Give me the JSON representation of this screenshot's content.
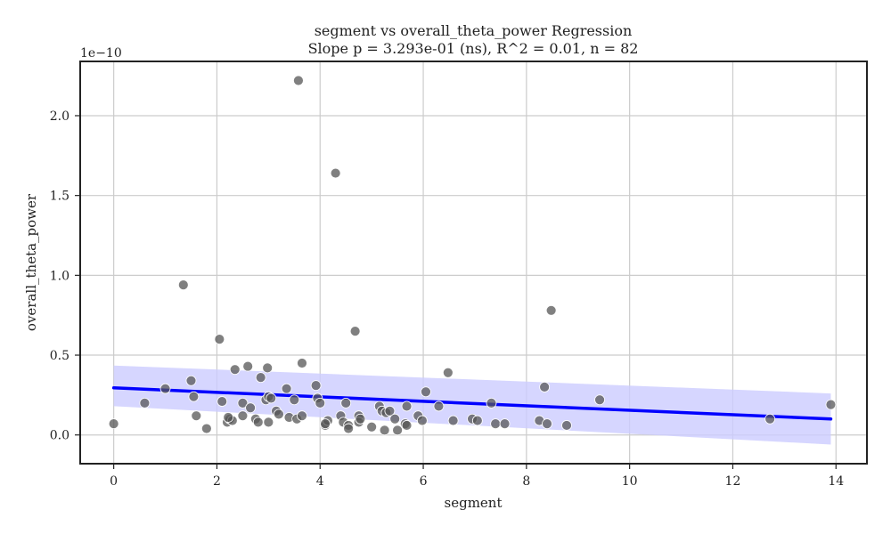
{
  "chart_data": {
    "type": "scatter",
    "title": "segment vs overall_theta_power Regression",
    "subtitle": "Slope p = 3.293e-01 (ns), R^2 = 0.01, n = 82",
    "xlabel": "segment",
    "ylabel": "overall_theta_power",
    "y_offset_label": "1e−10",
    "xlim": [
      -0.65,
      14.6
    ],
    "ylim": [
      -0.18,
      2.34
    ],
    "y_units": "1e-10",
    "xticks": [
      0,
      2,
      4,
      6,
      8,
      10,
      12,
      14
    ],
    "xtick_labels": [
      "0",
      "2",
      "4",
      "6",
      "8",
      "10",
      "12",
      "14"
    ],
    "yticks": [
      0.0,
      0.5,
      1.0,
      1.5,
      2.0
    ],
    "ytick_labels": [
      "0.0",
      "0.5",
      "1.0",
      "1.5",
      "2.0"
    ],
    "grid": true,
    "colors": {
      "points": "#555555",
      "line": "#0000ff",
      "band": "#ccccff",
      "grid": "#cccccc",
      "axes": "#222222"
    },
    "regression": {
      "x": [
        0,
        13.9
      ],
      "y": [
        0.295,
        0.1
      ],
      "ci_upper": [
        0.435,
        0.26
      ],
      "ci_lower": [
        0.18,
        -0.06
      ]
    },
    "points": [
      {
        "x": 0.0,
        "y": 0.07
      },
      {
        "x": 0.6,
        "y": 0.2
      },
      {
        "x": 1.0,
        "y": 0.29
      },
      {
        "x": 1.35,
        "y": 0.94
      },
      {
        "x": 1.5,
        "y": 0.34
      },
      {
        "x": 1.55,
        "y": 0.24
      },
      {
        "x": 1.6,
        "y": 0.12
      },
      {
        "x": 1.8,
        "y": 0.04
      },
      {
        "x": 2.05,
        "y": 0.6
      },
      {
        "x": 2.1,
        "y": 0.21
      },
      {
        "x": 2.2,
        "y": 0.08
      },
      {
        "x": 2.25,
        "y": 0.1
      },
      {
        "x": 2.3,
        "y": 0.09
      },
      {
        "x": 2.35,
        "y": 0.41
      },
      {
        "x": 2.5,
        "y": 0.2
      },
      {
        "x": 2.5,
        "y": 0.12
      },
      {
        "x": 2.6,
        "y": 0.43
      },
      {
        "x": 2.65,
        "y": 0.17
      },
      {
        "x": 2.75,
        "y": 0.1
      },
      {
        "x": 2.8,
        "y": 0.08
      },
      {
        "x": 2.85,
        "y": 0.36
      },
      {
        "x": 2.95,
        "y": 0.22
      },
      {
        "x": 2.98,
        "y": 0.42
      },
      {
        "x": 3.0,
        "y": 0.24
      },
      {
        "x": 3.0,
        "y": 0.08
      },
      {
        "x": 3.05,
        "y": 0.23
      },
      {
        "x": 3.15,
        "y": 0.15
      },
      {
        "x": 3.2,
        "y": 0.13
      },
      {
        "x": 3.35,
        "y": 0.29
      },
      {
        "x": 3.4,
        "y": 0.11
      },
      {
        "x": 3.5,
        "y": 0.22
      },
      {
        "x": 3.55,
        "y": 0.1
      },
      {
        "x": 3.58,
        "y": 2.22
      },
      {
        "x": 3.65,
        "y": 0.45
      },
      {
        "x": 3.65,
        "y": 0.12
      },
      {
        "x": 3.92,
        "y": 0.31
      },
      {
        "x": 3.95,
        "y": 0.23
      },
      {
        "x": 4.0,
        "y": 0.2
      },
      {
        "x": 4.1,
        "y": 0.06
      },
      {
        "x": 4.15,
        "y": 0.09
      },
      {
        "x": 4.3,
        "y": 1.64
      },
      {
        "x": 4.4,
        "y": 0.12
      },
      {
        "x": 4.45,
        "y": 0.08
      },
      {
        "x": 4.5,
        "y": 0.2
      },
      {
        "x": 4.55,
        "y": 0.06
      },
      {
        "x": 4.55,
        "y": 0.04
      },
      {
        "x": 4.68,
        "y": 0.65
      },
      {
        "x": 4.75,
        "y": 0.12
      },
      {
        "x": 4.75,
        "y": 0.08
      },
      {
        "x": 4.78,
        "y": 0.1
      },
      {
        "x": 5.0,
        "y": 0.05
      },
      {
        "x": 5.15,
        "y": 0.18
      },
      {
        "x": 5.2,
        "y": 0.15
      },
      {
        "x": 5.25,
        "y": 0.03
      },
      {
        "x": 5.28,
        "y": 0.14
      },
      {
        "x": 5.35,
        "y": 0.15
      },
      {
        "x": 5.45,
        "y": 0.1
      },
      {
        "x": 5.5,
        "y": 0.03
      },
      {
        "x": 5.65,
        "y": 0.07
      },
      {
        "x": 5.68,
        "y": 0.18
      },
      {
        "x": 5.9,
        "y": 0.12
      },
      {
        "x": 5.98,
        "y": 0.09
      },
      {
        "x": 6.05,
        "y": 0.27
      },
      {
        "x": 6.3,
        "y": 0.18
      },
      {
        "x": 6.48,
        "y": 0.39
      },
      {
        "x": 6.58,
        "y": 0.09
      },
      {
        "x": 6.95,
        "y": 0.1
      },
      {
        "x": 7.05,
        "y": 0.09
      },
      {
        "x": 7.32,
        "y": 0.2
      },
      {
        "x": 7.4,
        "y": 0.07
      },
      {
        "x": 7.58,
        "y": 0.07
      },
      {
        "x": 8.25,
        "y": 0.09
      },
      {
        "x": 8.35,
        "y": 0.3
      },
      {
        "x": 8.4,
        "y": 0.07
      },
      {
        "x": 8.48,
        "y": 0.78
      },
      {
        "x": 8.78,
        "y": 0.06
      },
      {
        "x": 9.42,
        "y": 0.22
      },
      {
        "x": 12.72,
        "y": 0.1
      },
      {
        "x": 13.9,
        "y": 0.19
      },
      {
        "x": 2.22,
        "y": 0.11
      },
      {
        "x": 5.68,
        "y": 0.06
      },
      {
        "x": 4.1,
        "y": 0.07
      }
    ]
  }
}
